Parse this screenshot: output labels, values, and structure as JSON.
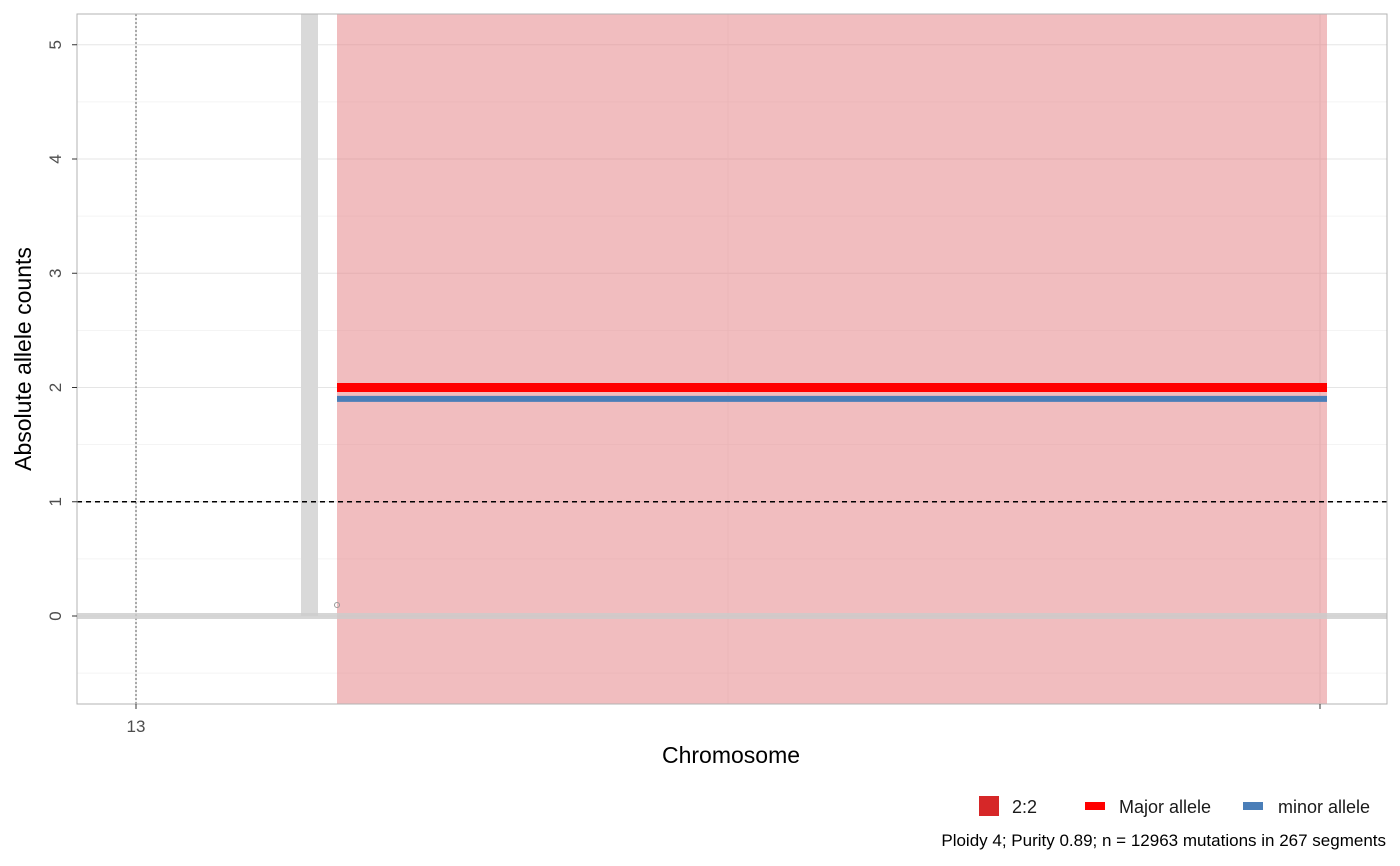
{
  "chart_data": {
    "type": "segment",
    "xlabel": "Chromosome",
    "ylabel": "Absolute allele counts",
    "x_tick_labels": [
      "13"
    ],
    "y_ticks": [
      0,
      1,
      2,
      3,
      4,
      5
    ],
    "ylim": [
      -0.75,
      5.25
    ],
    "grid": true,
    "reference_line_y": 1,
    "baseline_y": 0,
    "segments": [
      {
        "karyotype": "2:2",
        "major": 2,
        "minor": 1.9
      }
    ],
    "series": [
      {
        "name": "Major allele",
        "color": "#ff0000",
        "value": 2
      },
      {
        "name": "minor allele",
        "color": "#4a7eb8",
        "value": 1.9
      }
    ],
    "legend": {
      "position": "bottom-right",
      "items": [
        {
          "label": "2:2",
          "color": "#d62728",
          "kind": "square"
        },
        {
          "label": "Major allele",
          "color": "#ff0000",
          "kind": "line"
        },
        {
          "label": "minor allele",
          "color": "#4a7eb8",
          "kind": "line"
        }
      ]
    },
    "caption": "Ploidy 4; Purity  0.89; n = 12963 mutations in 267 segments",
    "colors": {
      "segment_fill": "#e37c80",
      "baseline": "#d9d9d9",
      "grid": "#e5e5e5"
    }
  }
}
